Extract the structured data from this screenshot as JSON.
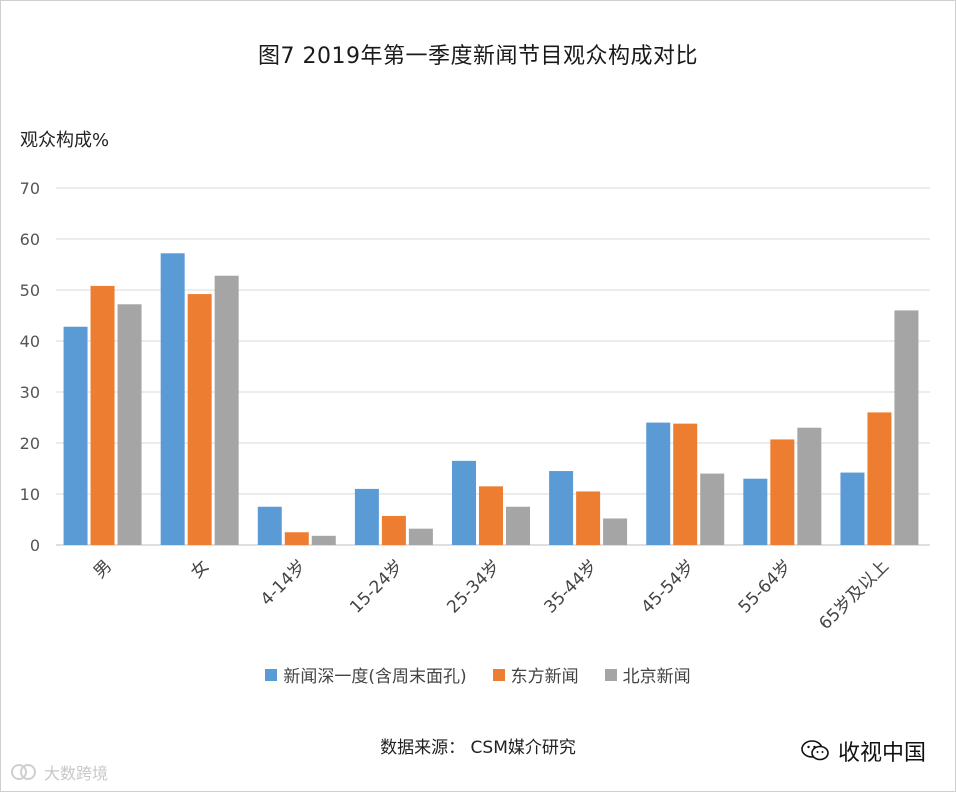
{
  "chart_data": {
    "type": "bar",
    "title": "图7  2019年第一季度新闻节目观众构成对比",
    "ylabel": "观众构成%",
    "xlabel": "",
    "ylim": [
      0,
      70
    ],
    "yticks": [
      0,
      10,
      20,
      30,
      40,
      50,
      60,
      70
    ],
    "grid": true,
    "legend_position": "bottom",
    "categories": [
      "男",
      "女",
      "4-14岁",
      "15-24岁",
      "25-34岁",
      "35-44岁",
      "45-54岁",
      "55-64岁",
      "65岁及以上"
    ],
    "series": [
      {
        "name": "新闻深一度(含周末面孔)",
        "color": "#5b9bd5",
        "values": [
          42.8,
          57.2,
          7.5,
          11.0,
          16.5,
          14.5,
          24.0,
          13.0,
          14.2
        ]
      },
      {
        "name": "东方新闻",
        "color": "#ed7d31",
        "values": [
          50.8,
          49.2,
          2.5,
          5.7,
          11.5,
          10.5,
          23.8,
          20.7,
          26.0
        ]
      },
      {
        "name": "北京新闻",
        "color": "#a5a5a5",
        "values": [
          47.2,
          52.8,
          1.8,
          3.2,
          7.5,
          5.2,
          14.0,
          23.0,
          46.0
        ]
      }
    ]
  },
  "footer": {
    "source": "数据来源：  CSM媒介研究",
    "wechat_name": "收视中国",
    "watermark": "大数跨境"
  }
}
